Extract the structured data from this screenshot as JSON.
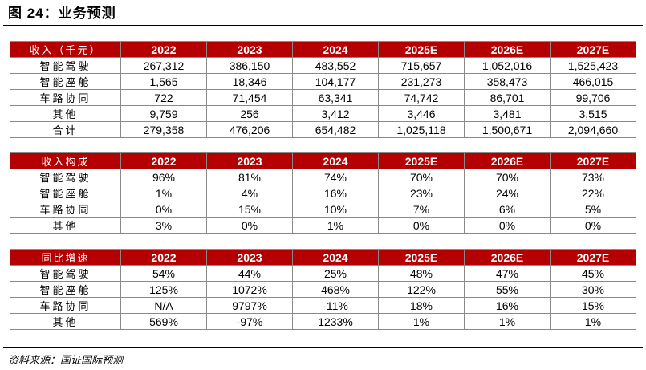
{
  "title": "图 24：业务预测",
  "source": "资料来源：国证国际预测",
  "tables": [
    {
      "header": [
        "收入（千元）",
        "2022",
        "2023",
        "2024",
        "2025E",
        "2026E",
        "2027E"
      ],
      "rows": [
        [
          "智能驾驶",
          "267,312",
          "386,150",
          "483,552",
          "715,657",
          "1,052,016",
          "1,525,423"
        ],
        [
          "智能座舱",
          "1,565",
          "18,346",
          "104,177",
          "231,273",
          "358,473",
          "466,015"
        ],
        [
          "车路协同",
          "722",
          "71,454",
          "63,341",
          "74,742",
          "86,701",
          "99,706"
        ],
        [
          "其他",
          "9,759",
          "256",
          "3,412",
          "3,446",
          "3,481",
          "3,515"
        ],
        [
          "合计",
          "279,358",
          "476,206",
          "654,482",
          "1,025,118",
          "1,500,671",
          "2,094,660"
        ]
      ]
    },
    {
      "header": [
        "收入构成",
        "2022",
        "2023",
        "2024",
        "2025E",
        "2026E",
        "2027E"
      ],
      "rows": [
        [
          "智能驾驶",
          "96%",
          "81%",
          "74%",
          "70%",
          "70%",
          "73%"
        ],
        [
          "智能座舱",
          "1%",
          "4%",
          "16%",
          "23%",
          "24%",
          "22%"
        ],
        [
          "车路协同",
          "0%",
          "15%",
          "10%",
          "7%",
          "6%",
          "5%"
        ],
        [
          "其他",
          "3%",
          "0%",
          "1%",
          "0%",
          "0%",
          "0%"
        ]
      ]
    },
    {
      "header": [
        "同比增速",
        "2022",
        "2023",
        "2024",
        "2025E",
        "2026E",
        "2027E"
      ],
      "rows": [
        [
          "智能驾驶",
          "54%",
          "44%",
          "25%",
          "48%",
          "47%",
          "45%"
        ],
        [
          "智能座舱",
          "125%",
          "1072%",
          "468%",
          "122%",
          "55%",
          "30%"
        ],
        [
          "车路协同",
          "N/A",
          "9797%",
          "-11%",
          "18%",
          "16%",
          "15%"
        ],
        [
          "其他",
          "569%",
          "-97%",
          "1233%",
          "1%",
          "1%",
          "1%"
        ]
      ]
    }
  ],
  "colors": {
    "header_bg": "#b40000",
    "header_text": "#ffffff",
    "border": "#8a8a8a"
  }
}
